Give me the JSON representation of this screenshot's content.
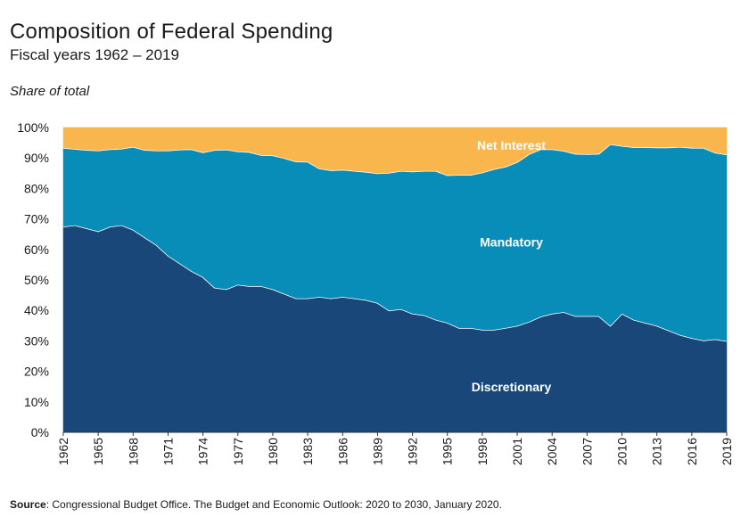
{
  "chart_data": {
    "type": "area",
    "stacked": true,
    "title": "Composition of Federal Spending",
    "subtitle": "Fiscal years 1962 – 2019",
    "ylabel": "Share of total",
    "xlabel": "",
    "ylim": [
      0,
      100
    ],
    "y_ticks": [
      "0%",
      "10%",
      "20%",
      "30%",
      "40%",
      "50%",
      "60%",
      "70%",
      "80%",
      "90%",
      "100%"
    ],
    "x_ticks": [
      "1962",
      "1965",
      "1968",
      "1971",
      "1974",
      "1977",
      "1980",
      "1983",
      "1986",
      "1989",
      "1992",
      "1995",
      "1998",
      "2001",
      "2004",
      "2007",
      "2010",
      "2013",
      "2016",
      "2019"
    ],
    "x": [
      1962,
      1963,
      1964,
      1965,
      1966,
      1967,
      1968,
      1969,
      1970,
      1971,
      1972,
      1973,
      1974,
      1975,
      1976,
      1977,
      1978,
      1979,
      1980,
      1981,
      1982,
      1983,
      1984,
      1985,
      1986,
      1987,
      1988,
      1989,
      1990,
      1991,
      1992,
      1993,
      1994,
      1995,
      1996,
      1997,
      1998,
      1999,
      2000,
      2001,
      2002,
      2003,
      2004,
      2005,
      2006,
      2007,
      2008,
      2009,
      2010,
      2011,
      2012,
      2013,
      2014,
      2015,
      2016,
      2017,
      2018,
      2019
    ],
    "series": [
      {
        "name": "Discretionary",
        "color": "#1a477a",
        "values": [
          67.5,
          68,
          67,
          66,
          67.5,
          68,
          66.5,
          64,
          61.5,
          58,
          55.5,
          53,
          51,
          47.5,
          47,
          48.5,
          48,
          48,
          47,
          45.5,
          44,
          44,
          44.5,
          44,
          44.5,
          44,
          43.5,
          42.5,
          40,
          40.5,
          39,
          38.5,
          37,
          36,
          34.3,
          34.3,
          33.7,
          33.7,
          34.3,
          35,
          36.3,
          38,
          39,
          39.5,
          38.2,
          38.2,
          38.2,
          35,
          39,
          37,
          36,
          35,
          33.5,
          32,
          31,
          30.2,
          30.6,
          30
        ]
      },
      {
        "name": "Mandatory",
        "color": "#088db8",
        "values": [
          25.9,
          25,
          25.7,
          26.5,
          25.4,
          25.1,
          27.2,
          28.7,
          31,
          34.5,
          37.3,
          39.9,
          40.9,
          45.2,
          45.8,
          43.7,
          44,
          43,
          43.9,
          44.5,
          44.9,
          44.8,
          42.1,
          42,
          41.7,
          41.8,
          42,
          42.5,
          45.2,
          45.3,
          46.6,
          47.3,
          48.8,
          48.4,
          50.2,
          50.2,
          51.6,
          52.7,
          52.9,
          53.7,
          55,
          54.9,
          53.9,
          52.9,
          53.2,
          53.1,
          53.2,
          59.6,
          55,
          56.6,
          57.6,
          58.5,
          60,
          61.7,
          62.4,
          63.2,
          61.2,
          61.2
        ]
      },
      {
        "name": "Net Interest",
        "color": "#f9b64d",
        "values": [
          6.6,
          7,
          7.3,
          7.5,
          7.1,
          6.9,
          6.3,
          7.3,
          7.5,
          7.5,
          7.2,
          7.1,
          8.1,
          7.3,
          7.2,
          7.8,
          8,
          9,
          9.1,
          10,
          11.1,
          11.2,
          13.4,
          14,
          13.8,
          14.2,
          14.5,
          15,
          14.8,
          14.2,
          14.4,
          14.2,
          14.2,
          15.6,
          15.5,
          15.5,
          14.7,
          13.6,
          12.8,
          11.3,
          8.7,
          7.1,
          7.1,
          7.6,
          8.6,
          8.7,
          8.6,
          5.4,
          6,
          6.4,
          6.4,
          6.5,
          6.5,
          6.3,
          6.6,
          6.6,
          8.2,
          8.8
        ]
      }
    ],
    "series_labels": [
      "Net Interest",
      "Mandatory",
      "Discretionary"
    ]
  },
  "source": {
    "label": "Source",
    "text": ": Congressional Budget Office. The Budget and Economic Outlook: 2020 to 2030, January 2020."
  }
}
